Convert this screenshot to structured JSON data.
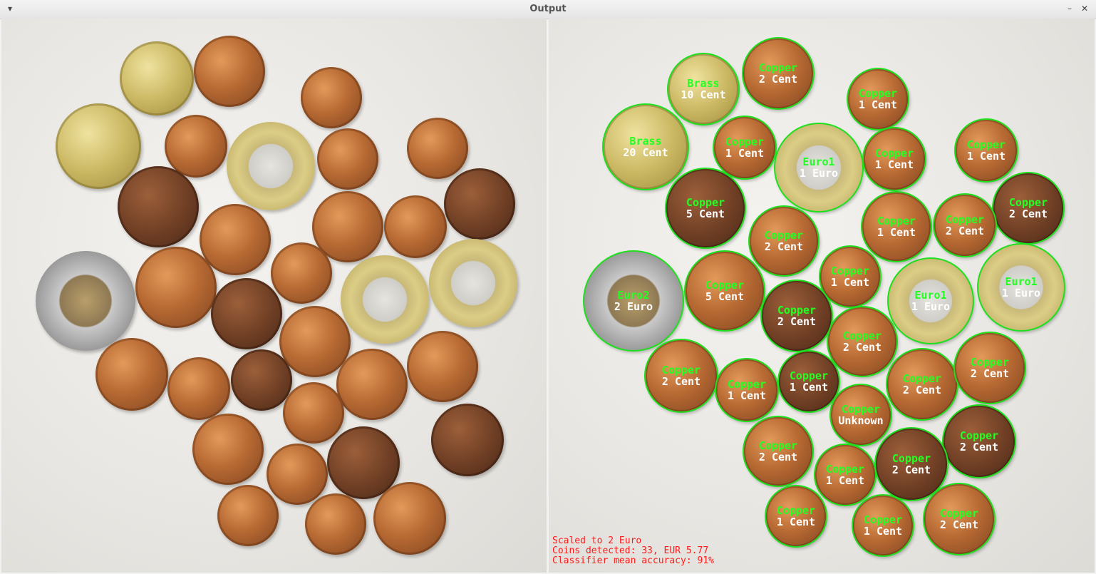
{
  "window": {
    "title": "Output"
  },
  "status": {
    "line1": "Scaled to 2 Euro",
    "line2": "Coins detected: 33, EUR 5.77",
    "line3": "Classifier mean accuracy: 91%",
    "color": "#ff1a1a"
  },
  "ring_color": "#1fe01f",
  "coins": [
    {
      "cls": "Brass",
      "val": "10 Cent"
    },
    {
      "cls": "Copper",
      "val": "2 Cent"
    },
    {
      "cls": "Copper",
      "val": "1 Cent"
    },
    {
      "cls": "Brass",
      "val": "20 Cent"
    },
    {
      "cls": "Copper",
      "val": "1 Cent"
    },
    {
      "cls": "Euro1",
      "val": "1 Euro"
    },
    {
      "cls": "Copper",
      "val": "1 Cent"
    },
    {
      "cls": "Copper",
      "val": "1 Cent"
    },
    {
      "cls": "Copper",
      "val": "5 Cent"
    },
    {
      "cls": "Copper",
      "val": "2 Cent"
    },
    {
      "cls": "Copper",
      "val": "2 Cent"
    },
    {
      "cls": "Copper",
      "val": "1 Cent"
    },
    {
      "cls": "Copper",
      "val": "2 Cent"
    },
    {
      "cls": "Euro2",
      "val": "2 Euro"
    },
    {
      "cls": "Copper",
      "val": "5 Cent"
    },
    {
      "cls": "Copper",
      "val": "1 Cent"
    },
    {
      "cls": "Euro1",
      "val": "1 Euro"
    },
    {
      "cls": "Euro1",
      "val": "1 Euro"
    },
    {
      "cls": "Copper",
      "val": "2 Cent"
    },
    {
      "cls": "Copper",
      "val": "2 Cent"
    },
    {
      "cls": "Copper",
      "val": "2 Cent"
    },
    {
      "cls": "Copper",
      "val": "1 Cent"
    },
    {
      "cls": "Copper",
      "val": "1 Cent"
    },
    {
      "cls": "Copper",
      "val": "2 Cent"
    },
    {
      "cls": "Copper",
      "val": "2 Cent"
    },
    {
      "cls": "Copper",
      "val": "Unknown"
    },
    {
      "cls": "Copper",
      "val": "2 Cent"
    },
    {
      "cls": "Copper",
      "val": "2 Cent"
    },
    {
      "cls": "Copper",
      "val": "1 Cent"
    },
    {
      "cls": "Copper",
      "val": "2 Cent"
    },
    {
      "cls": "Copper",
      "val": "1 Cent"
    },
    {
      "cls": "Copper",
      "val": "1 Cent"
    },
    {
      "cls": "Copper",
      "val": "2 Cent"
    }
  ]
}
